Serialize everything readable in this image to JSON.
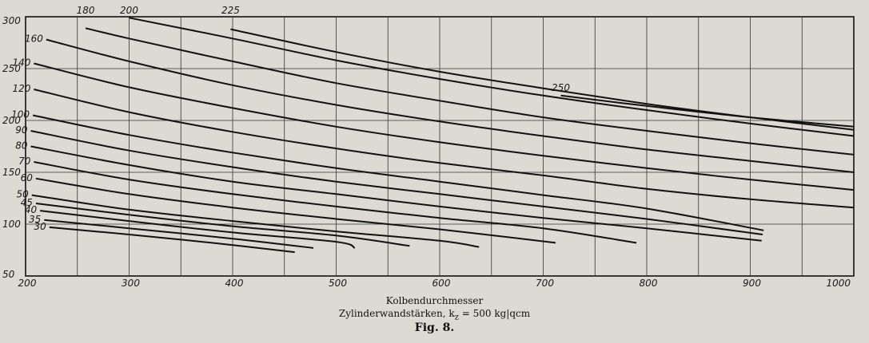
{
  "chart_data": {
    "type": "line",
    "xlabel": "Kolbendurchmesser",
    "subtitle": "Zylinderwandstärken, k",
    "subtitle_sub": "z",
    "subtitle_rest": " = 500 kg|qcm",
    "figure_label": "Fig. 8.",
    "xlim": [
      200,
      1000
    ],
    "ylim": [
      50,
      300
    ],
    "x_ticks": [
      200,
      300,
      400,
      500,
      600,
      700,
      800,
      900,
      1000
    ],
    "y_ticks": [
      50,
      100,
      150,
      200,
      250,
      300
    ],
    "grid": true,
    "series": [
      {
        "name": "30",
        "points": [
          [
            223,
            97
          ],
          [
            300,
            90
          ],
          [
            380,
            82
          ],
          [
            460,
            73
          ]
        ]
      },
      {
        "name": "35",
        "points": [
          [
            218,
            104
          ],
          [
            300,
            96
          ],
          [
            400,
            86
          ],
          [
            478,
            77
          ]
        ]
      },
      {
        "name": "40",
        "points": [
          [
            214,
            113
          ],
          [
            300,
            103
          ],
          [
            400,
            92
          ],
          [
            500,
            83
          ],
          [
            518,
            77
          ]
        ]
      },
      {
        "name": "45",
        "points": [
          [
            210,
            120
          ],
          [
            300,
            109
          ],
          [
            400,
            98
          ],
          [
            500,
            89
          ],
          [
            571,
            79
          ]
        ]
      },
      {
        "name": "50",
        "points": [
          [
            206,
            128
          ],
          [
            300,
            114
          ],
          [
            400,
            103
          ],
          [
            500,
            93
          ],
          [
            600,
            84
          ],
          [
            638,
            78
          ]
        ]
      },
      {
        "name": "60",
        "points": [
          [
            210,
            144
          ],
          [
            300,
            129
          ],
          [
            400,
            116
          ],
          [
            500,
            105
          ],
          [
            600,
            95
          ],
          [
            712,
            82
          ]
        ]
      },
      {
        "name": "70",
        "points": [
          [
            208,
            160
          ],
          [
            300,
            143
          ],
          [
            400,
            129
          ],
          [
            500,
            117
          ],
          [
            600,
            106
          ],
          [
            700,
            96
          ],
          [
            790,
            82
          ]
        ]
      },
      {
        "name": "80",
        "points": [
          [
            205,
            175
          ],
          [
            300,
            157
          ],
          [
            400,
            141
          ],
          [
            500,
            129
          ],
          [
            600,
            117
          ],
          [
            700,
            106
          ],
          [
            800,
            96
          ],
          [
            911,
            84
          ]
        ]
      },
      {
        "name": "90",
        "points": [
          [
            205,
            190
          ],
          [
            300,
            171
          ],
          [
            400,
            155
          ],
          [
            500,
            141
          ],
          [
            600,
            129
          ],
          [
            700,
            117
          ],
          [
            800,
            105
          ],
          [
            912,
            90
          ]
        ]
      },
      {
        "name": "100",
        "points": [
          [
            207,
            205
          ],
          [
            300,
            186
          ],
          [
            400,
            169
          ],
          [
            500,
            154
          ],
          [
            600,
            141
          ],
          [
            700,
            128
          ],
          [
            800,
            115
          ],
          [
            913,
            94
          ]
        ]
      },
      {
        "name": "120",
        "points": [
          [
            208,
            230
          ],
          [
            300,
            208
          ],
          [
            400,
            189
          ],
          [
            500,
            173
          ],
          [
            600,
            159
          ],
          [
            700,
            147
          ],
          [
            800,
            134
          ],
          [
            900,
            124
          ],
          [
            1000,
            116
          ]
        ]
      },
      {
        "name": "140",
        "points": [
          [
            208,
            255
          ],
          [
            300,
            232
          ],
          [
            400,
            212
          ],
          [
            500,
            194
          ],
          [
            600,
            179
          ],
          [
            700,
            166
          ],
          [
            800,
            154
          ],
          [
            900,
            143
          ],
          [
            1000,
            133
          ]
        ]
      },
      {
        "name": "160",
        "points": [
          [
            220,
            278
          ],
          [
            300,
            257
          ],
          [
            400,
            234
          ],
          [
            500,
            215
          ],
          [
            600,
            199
          ],
          [
            700,
            185
          ],
          [
            800,
            172
          ],
          [
            900,
            161
          ],
          [
            1000,
            150
          ]
        ]
      },
      {
        "name": "180",
        "points": [
          [
            258,
            289
          ],
          [
            300,
            279
          ],
          [
            400,
            257
          ],
          [
            500,
            236
          ],
          [
            600,
            219
          ],
          [
            700,
            203
          ],
          [
            800,
            190
          ],
          [
            900,
            178
          ],
          [
            1000,
            167
          ]
        ]
      },
      {
        "name": "200",
        "points": [
          [
            300,
            299
          ],
          [
            400,
            279
          ],
          [
            500,
            258
          ],
          [
            600,
            240
          ],
          [
            700,
            224
          ],
          [
            800,
            210
          ],
          [
            900,
            197
          ],
          [
            1000,
            185
          ]
        ]
      },
      {
        "name": "225",
        "points": [
          [
            398,
            288
          ],
          [
            500,
            266
          ],
          [
            600,
            247
          ],
          [
            700,
            231
          ],
          [
            800,
            216
          ],
          [
            900,
            203
          ],
          [
            1000,
            191
          ]
        ]
      },
      {
        "name": "250",
        "points": [
          [
            717,
            224
          ],
          [
            800,
            214
          ],
          [
            900,
            203
          ],
          [
            1000,
            194
          ]
        ]
      }
    ]
  }
}
